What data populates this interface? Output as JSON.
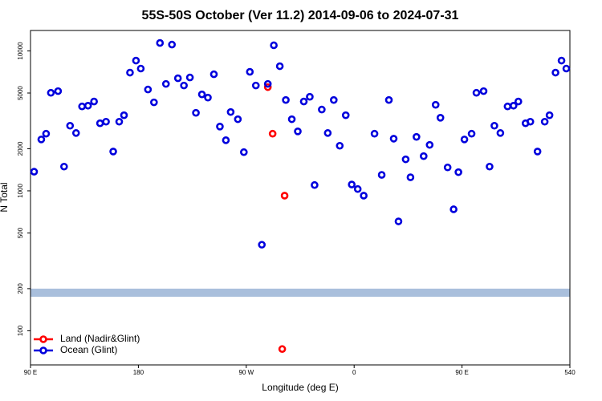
{
  "chart_data": {
    "type": "scatter",
    "title": "55S-50S October (Ver 11.2)   2014-09-06 to 2024-07-31",
    "xlabel": "Longitude (deg E)",
    "ylabel": "N Total",
    "xlim": [
      90,
      540
    ],
    "xticks": [
      {
        "value": 90,
        "label": "90 E"
      },
      180,
      {
        "value": 270,
        "label": "90 W"
      },
      {
        "value": 360,
        "label": "0"
      },
      {
        "value": 450,
        "label": "90 E"
      },
      540
    ],
    "ylim": [
      57,
      14000
    ],
    "yticks": [
      100,
      200,
      500,
      1000,
      2000,
      5000,
      10000
    ],
    "log_y": true,
    "band": {
      "range": [
        175,
        200
      ],
      "color": "#a9bfdc"
    },
    "legend": "lower left",
    "series": [
      {
        "name": "Land (Nadir&Glint)",
        "color": "#ff0000",
        "x": [
          288,
          292,
          302,
          300
        ],
        "values": [
          5510,
          2560,
          924,
          74
        ]
      },
      {
        "name": "Ocean (Glint)",
        "color": "#0000dd",
        "x": [
          93,
          99,
          103,
          107,
          113,
          118,
          123,
          128,
          133,
          138,
          143,
          148,
          153,
          159,
          164,
          168,
          173,
          178,
          182,
          188,
          193,
          198,
          203,
          208,
          213,
          218,
          223,
          228,
          233,
          238,
          243,
          248,
          253,
          257,
          263,
          268,
          273,
          278,
          283,
          288,
          293,
          298,
          303,
          308,
          313,
          318,
          323,
          327,
          333,
          338,
          343,
          348,
          353,
          358,
          363,
          368,
          377,
          383,
          389,
          393,
          397,
          403,
          407,
          412,
          418,
          423,
          428,
          432,
          438,
          443,
          447,
          452,
          458,
          462,
          468,
          473,
          477,
          482,
          488,
          493,
          497,
          503,
          507,
          513,
          519,
          523,
          528,
          533,
          537
        ],
        "values": [
          1370,
          2330,
          2560,
          5020,
          5160,
          1490,
          2920,
          2590,
          4010,
          4060,
          4350,
          3040,
          3120,
          1910,
          3120,
          3470,
          7000,
          8530,
          7480,
          5300,
          4290,
          11400,
          5810,
          11100,
          6380,
          5660,
          6460,
          3610,
          4890,
          4640,
          6810,
          2880,
          2300,
          3660,
          3250,
          1890,
          7090,
          5660,
          412,
          5810,
          10970,
          7780,
          4460,
          3250,
          2660,
          4350,
          4700,
          1100,
          3810,
          2590,
          4460,
          2100,
          3470,
          1110,
          1030,
          924,
          2560,
          1300,
          4460,
          2360,
          605,
          1680,
          1250,
          2430,
          1770,
          2130,
          4120,
          3330,
          1470,
          738,
          1360,
          2330,
          2560,
          5020,
          5160,
          1490,
          2920,
          2590,
          4010,
          4060,
          4350,
          3040,
          3120,
          1910,
          3120,
          3470,
          7000,
          8530,
          7480
        ]
      }
    ]
  }
}
